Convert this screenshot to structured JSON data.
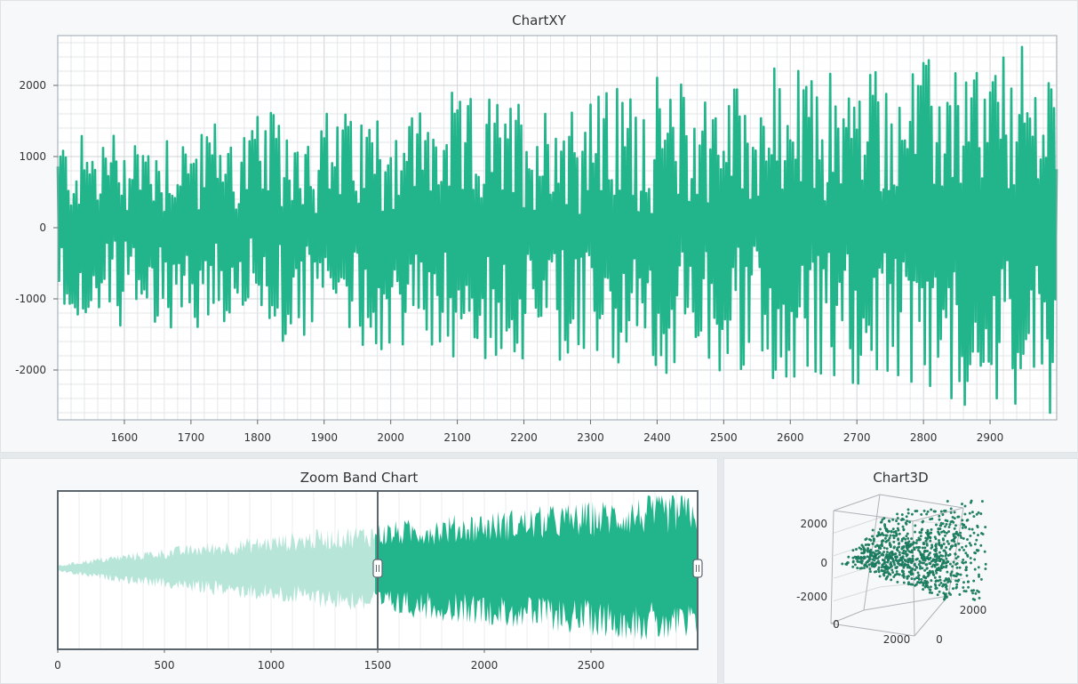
{
  "colors": {
    "series": "#22b58b",
    "series_faded": "#b7e6d8",
    "grid": "#d4d7da",
    "frame": "#9aa4ad",
    "band_border": "#5b666f",
    "scatter_point": "#1f8a6a"
  },
  "chart_data": [
    {
      "id": "chartxy",
      "type": "line",
      "title": "ChartXY",
      "xlabel": "",
      "ylabel": "",
      "xlim": [
        1500,
        3000
      ],
      "ylim": [
        -2700,
        2700
      ],
      "x_ticks": [
        1600,
        1700,
        1800,
        1900,
        2000,
        2100,
        2200,
        2300,
        2400,
        2500,
        2600,
        2700,
        2800,
        2900
      ],
      "y_ticks": [
        -2000,
        -1000,
        0,
        1000,
        2000
      ],
      "y_tick_labels": [
        "-2000",
        "-1000",
        "0",
        "1000",
        "2000"
      ],
      "grid": true,
      "series": [
        {
          "generator": "noisy oscillation with growing amplitude",
          "x_start": 1500,
          "x_end": 3000,
          "amplitude_start": 1300,
          "amplitude_end": 2500,
          "ymax_observed": 2600,
          "ymin_observed": -2600
        }
      ]
    },
    {
      "id": "zoom-band",
      "type": "area",
      "title": "Zoom Band Chart",
      "xlim": [
        0,
        3000
      ],
      "x_ticks": [
        0,
        500,
        1000,
        1500,
        2000,
        2500
      ],
      "selected_range": [
        1500,
        3000
      ],
      "grid": true
    },
    {
      "id": "chart3d",
      "type": "scatter",
      "title": "Chart3D",
      "y_ticks": [
        -2000,
        0,
        2000
      ],
      "y_tick_labels": [
        "-2000",
        "0",
        "2000"
      ],
      "x_tick_labels": [
        "0",
        "2000"
      ],
      "z_tick_labels": [
        "0",
        "2000"
      ]
    }
  ]
}
